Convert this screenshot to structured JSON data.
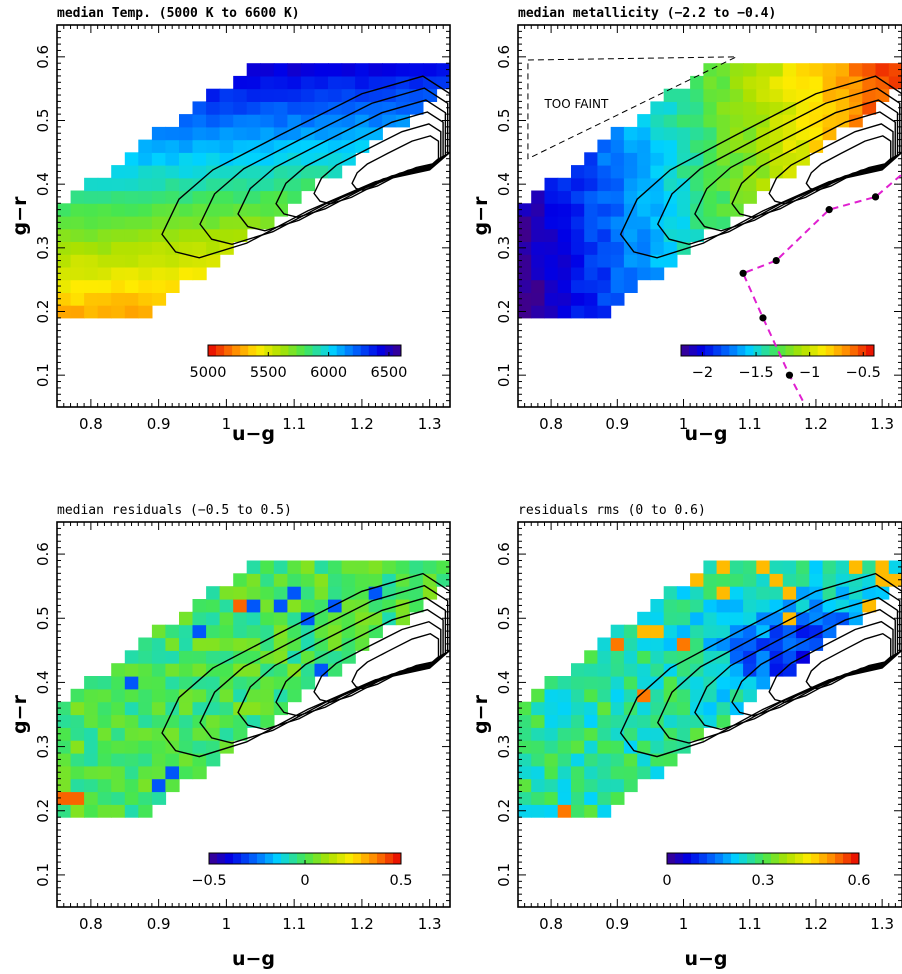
{
  "chart_data": [
    {
      "type": "heatmap",
      "title": "median Temp. (5000 K to 6600 K)",
      "xlabel": "u−g",
      "ylabel": "g−r",
      "xlim": [
        0.75,
        1.33
      ],
      "ylim": [
        0.05,
        0.65
      ],
      "xticks": [
        "0.8",
        "0.9",
        "1",
        "1.1",
        "1.2",
        "1.3"
      ],
      "yticks": [
        "0.1",
        "0.2",
        "0.3",
        "0.4",
        "0.5",
        "0.6"
      ],
      "value_range": [
        5000,
        6600
      ],
      "colorbar": {
        "reversed": true,
        "ticks": [
          "5000",
          "5500",
          "6000",
          "6500"
        ],
        "values": [
          5000,
          5500,
          6000,
          6500
        ]
      },
      "contours": true
    },
    {
      "type": "heatmap",
      "title": "median metallicity (−2.2 to −0.4)",
      "xlabel": "u−g",
      "ylabel": "g−r",
      "xlim": [
        0.75,
        1.33
      ],
      "ylim": [
        0.05,
        0.65
      ],
      "xticks": [
        "0.8",
        "0.9",
        "1",
        "1.1",
        "1.2",
        "1.3"
      ],
      "yticks": [
        "0.1",
        "0.2",
        "0.3",
        "0.4",
        "0.5",
        "0.6"
      ],
      "value_range": [
        -2.2,
        -0.4
      ],
      "colorbar": {
        "reversed": false,
        "ticks": [
          "−2",
          "−1.5",
          "−1",
          "−0.5"
        ],
        "values": [
          -2,
          -1.5,
          -1,
          -0.5
        ]
      },
      "contours": true,
      "annotation": "TOO FAINT",
      "boundary_points": [
        {
          "x": 1.16,
          "y": 0.1
        },
        {
          "x": 1.12,
          "y": 0.19
        },
        {
          "x": 1.09,
          "y": 0.26
        },
        {
          "x": 1.14,
          "y": 0.28
        },
        {
          "x": 1.22,
          "y": 0.36
        },
        {
          "x": 1.29,
          "y": 0.38
        }
      ]
    },
    {
      "type": "heatmap",
      "title": "median residuals (−0.5 to 0.5)",
      "xlabel": "u−g",
      "ylabel": "g−r",
      "xlim": [
        0.75,
        1.33
      ],
      "ylim": [
        0.05,
        0.65
      ],
      "xticks": [
        "0.8",
        "0.9",
        "1",
        "1.1",
        "1.2",
        "1.3"
      ],
      "yticks": [
        "0.1",
        "0.2",
        "0.3",
        "0.4",
        "0.5",
        "0.6"
      ],
      "value_range": [
        -0.5,
        0.5
      ],
      "colorbar": {
        "reversed": false,
        "ticks": [
          "−0.5",
          "0",
          "0.5"
        ],
        "values": [
          -0.5,
          0,
          0.5
        ]
      },
      "contours": true
    },
    {
      "type": "heatmap",
      "title": "residuals rms (0 to 0.6)",
      "xlabel": "u−g",
      "ylabel": "g−r",
      "xlim": [
        0.75,
        1.33
      ],
      "ylim": [
        0.05,
        0.65
      ],
      "xticks": [
        "0.8",
        "0.9",
        "1",
        "1.1",
        "1.2",
        "1.3"
      ],
      "yticks": [
        "0.1",
        "0.2",
        "0.3",
        "0.4",
        "0.5",
        "0.6"
      ],
      "value_range": [
        0,
        0.6
      ],
      "colorbar": {
        "reversed": false,
        "ticks": [
          "0",
          "0.3",
          "0.6"
        ],
        "values": [
          0,
          0.3,
          0.6
        ]
      },
      "contours": true
    }
  ]
}
